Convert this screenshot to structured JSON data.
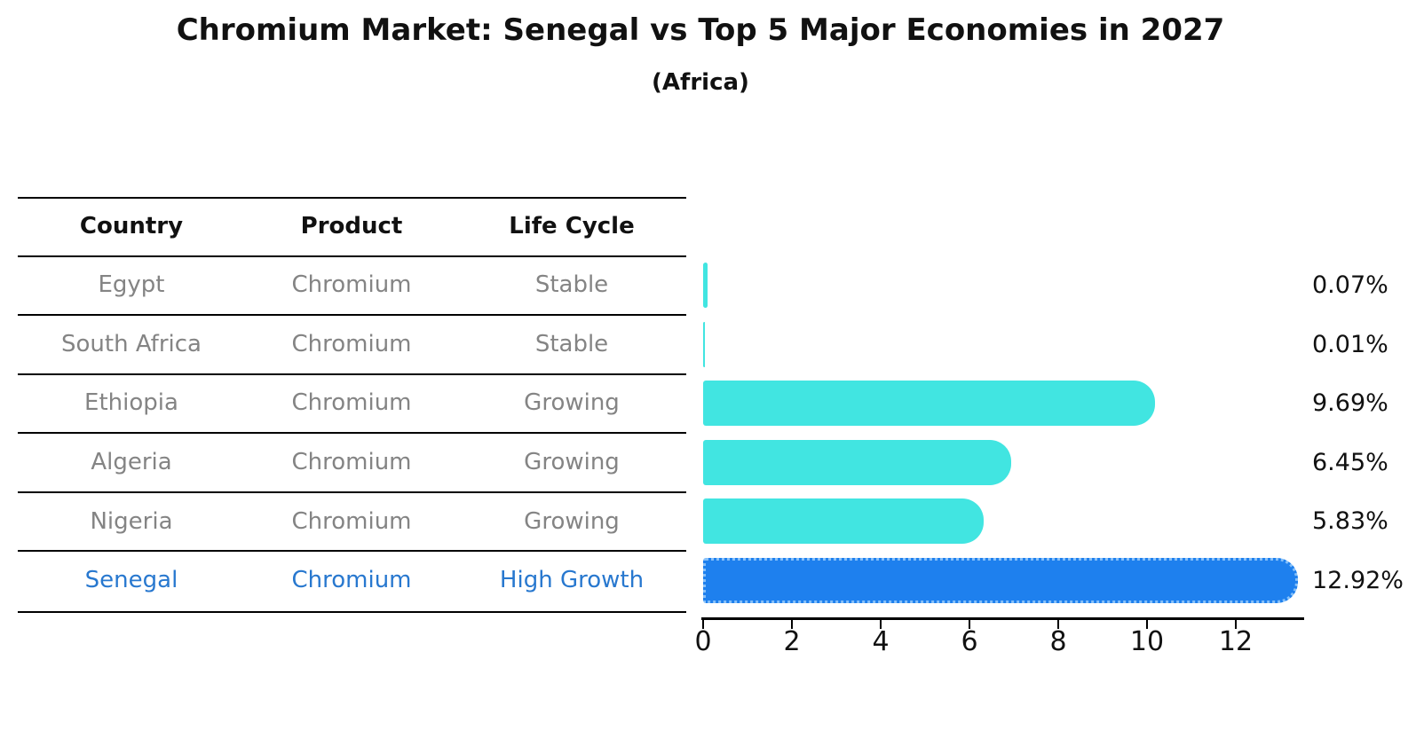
{
  "title": "Chromium Market: Senegal vs Top 5 Major Economies in 2027",
  "subtitle": "(Africa)",
  "table": {
    "headers": [
      "Country",
      "Product",
      "Life Cycle"
    ],
    "rows": [
      {
        "country": "Egypt",
        "product": "Chromium",
        "life_cycle": "Stable",
        "highlight": false
      },
      {
        "country": "South Africa",
        "product": "Chromium",
        "life_cycle": "Stable",
        "highlight": false
      },
      {
        "country": "Ethiopia",
        "product": "Chromium",
        "life_cycle": "Growing",
        "highlight": false
      },
      {
        "country": "Algeria",
        "product": "Chromium",
        "life_cycle": "Growing",
        "highlight": false
      },
      {
        "country": "Nigeria",
        "product": "Chromium",
        "life_cycle": "Growing",
        "highlight": false
      },
      {
        "country": "Senegal",
        "product": "Chromium",
        "life_cycle": "High Growth",
        "highlight": true
      }
    ]
  },
  "chart_data": {
    "type": "bar",
    "orientation": "horizontal",
    "title": "Chromium Market: Senegal vs Top 5 Major Economies in 2027 (Africa)",
    "categories": [
      "Egypt",
      "South Africa",
      "Ethiopia",
      "Algeria",
      "Nigeria",
      "Senegal"
    ],
    "values": [
      0.07,
      0.01,
      9.69,
      6.45,
      5.83,
      12.92
    ],
    "value_labels": [
      "0.07%",
      "0.01%",
      "9.69%",
      "6.45%",
      "5.83%",
      "12.92%"
    ],
    "x_ticks": [
      0,
      2,
      4,
      6,
      8,
      10,
      12
    ],
    "xlim": [
      0,
      13.5
    ],
    "grid": false,
    "legend": "none",
    "bar_color": "#41e5e1",
    "highlight_color": "#1e80ee",
    "highlight_index": 5,
    "highlight_border_style": "dotted"
  },
  "colors": {
    "background": "#ffffff",
    "table_line": "#000000",
    "muted_text": "#848484",
    "highlight_text": "#2878cf",
    "axis": "#000000"
  }
}
